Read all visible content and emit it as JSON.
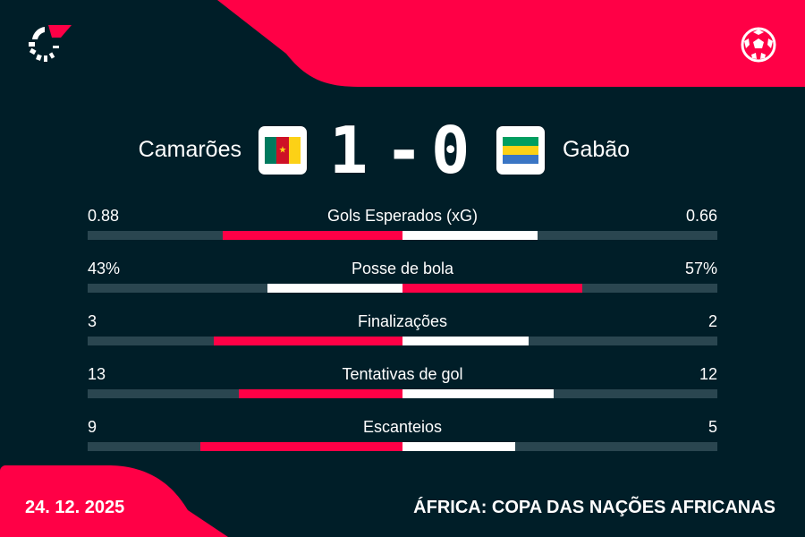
{
  "colors": {
    "background": "#001e28",
    "accent": "#ff0046",
    "track": "#2a4650",
    "white": "#ffffff"
  },
  "header": {
    "logo_icon": "flashscore-logo",
    "sport_icon": "football-icon"
  },
  "match": {
    "home": {
      "name": "Camarões",
      "flag": [
        "#007a5e",
        "#ce1126",
        "#fcd116"
      ]
    },
    "away": {
      "name": "Gabão",
      "flag": [
        "#009e60",
        "#fcd116",
        "#3a75c4"
      ]
    },
    "home_score": "1",
    "separator": "-",
    "away_score": "0"
  },
  "stats": [
    {
      "label": "Gols Esperados (xG)",
      "home": "0.88",
      "away": "0.66",
      "home_value": 0.88,
      "away_value": 0.66,
      "home_color": "#ff0046",
      "away_color": "#ffffff"
    },
    {
      "label": "Posse de bola",
      "home": "43%",
      "away": "57%",
      "home_value": 43,
      "away_value": 57,
      "home_color": "#ffffff",
      "away_color": "#ff0046"
    },
    {
      "label": "Finalizações",
      "home": "3",
      "away": "2",
      "home_value": 3,
      "away_value": 2,
      "home_color": "#ff0046",
      "away_color": "#ffffff"
    },
    {
      "label": "Tentativas de gol",
      "home": "13",
      "away": "12",
      "home_value": 13,
      "away_value": 12,
      "home_color": "#ff0046",
      "away_color": "#ffffff"
    },
    {
      "label": "Escanteios",
      "home": "9",
      "away": "5",
      "home_value": 9,
      "away_value": 5,
      "home_color": "#ff0046",
      "away_color": "#ffffff"
    }
  ],
  "footer": {
    "date": "24. 12. 2025",
    "competition": "ÁFRICA: COPA DAS NAÇÕES AFRICANAS"
  }
}
